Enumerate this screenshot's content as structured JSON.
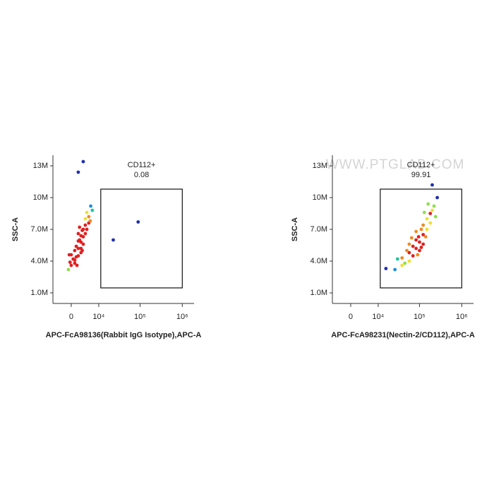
{
  "watermark": "WWW.PTGLAB.COM",
  "chart_data": [
    {
      "type": "scatter",
      "x_label": "APC-FcA98136(Rabbit IgG Isotype),APC-A",
      "y_label": "SSC-A",
      "xscale": "biexponential",
      "xlim": [
        -5500,
        1900000
      ],
      "ylim": [
        0,
        14000000
      ],
      "xticks": [
        0,
        {
          "value": 10000,
          "label": "10⁴"
        },
        {
          "value": 100000,
          "label": "10⁵"
        },
        {
          "value": 1000000,
          "label": "10⁶"
        }
      ],
      "yticks": [
        {
          "value": 1000000,
          "label": "1.0M"
        },
        {
          "value": 4000000,
          "label": "4.0M"
        },
        {
          "value": 7000000,
          "label": "7.0M"
        },
        {
          "value": 10000000,
          "label": "10M"
        },
        {
          "value": 13000000,
          "label": "13M"
        }
      ],
      "gate": {
        "name": "CD112+",
        "percent": 0.08,
        "x": [
          11300,
          1000000
        ],
        "y": [
          1470000,
          10800000
        ]
      },
      "x": [
        -727,
        0,
        907,
        0,
        907,
        1850,
        1850,
        2620,
        2620,
        1850,
        3300,
        3300,
        2620,
        3980,
        3980,
        5220,
        5220,
        6670,
        907,
        3300,
        2620,
        1850,
        3980,
        4500,
        1300,
        1300,
        2200,
        3000,
        500,
        6000,
        -300,
        4500,
        2200,
        3000,
        1500,
        5800,
        -500,
        3300,
        1850,
        23000,
        90000
      ],
      "y": [
        3200000,
        3600000,
        4100000,
        4600000,
        3800000,
        5200000,
        4500000,
        5800000,
        6400000,
        5900000,
        6300000,
        7000000,
        5200000,
        7400000,
        6600000,
        8200000,
        7600000,
        8800000,
        5000000,
        5600000,
        4800000,
        6600000,
        8000000,
        7000000,
        4400000,
        5400000,
        6000000,
        6900000,
        4200000,
        9200000,
        3900000,
        8600000,
        7200000,
        5000000,
        3600000,
        7800000,
        4600000,
        13400000,
        12400000,
        6000000,
        7700000
      ]
    },
    {
      "type": "scatter",
      "x_label": "APC-FcA98231(Nectin-2/CD112),APC-A",
      "y_label": "SSC-A",
      "xscale": "biexponential",
      "xlim": [
        -5500,
        1900000
      ],
      "ylim": [
        0,
        14000000
      ],
      "xticks": [
        0,
        {
          "value": 10000,
          "label": "10⁴"
        },
        {
          "value": 100000,
          "label": "10⁵"
        },
        {
          "value": 1000000,
          "label": "10⁶"
        }
      ],
      "yticks": [
        {
          "value": 1000000,
          "label": "1.0M"
        },
        {
          "value": 4000000,
          "label": "4.0M"
        },
        {
          "value": 7000000,
          "label": "7.0M"
        },
        {
          "value": 10000000,
          "label": "10M"
        },
        {
          "value": 13000000,
          "label": "13M"
        }
      ],
      "gate": {
        "name": "CD112+",
        "percent": 99.91,
        "x": [
          11300,
          1000000
        ],
        "y": [
          1470000,
          10800000
        ]
      },
      "x": [
        26000,
        38500,
        38500,
        57000,
        57000,
        57000,
        83000,
        83000,
        83000,
        100000,
        100000,
        122000,
        122000,
        122000,
        150000,
        150000,
        180000,
        180000,
        220000,
        263000,
        70000,
        70000,
        95000,
        110000,
        45000,
        140000,
        200000,
        65000,
        30000,
        160000,
        90000,
        130000,
        240000,
        50000,
        110000,
        15700,
        200000
      ],
      "y": [
        3200000,
        3600000,
        4300000,
        4000000,
        4800000,
        5600000,
        5200000,
        6000000,
        6800000,
        5800000,
        5000000,
        6500000,
        7400000,
        5600000,
        7000000,
        8000000,
        8500000,
        7600000,
        9200000,
        10000000,
        4500000,
        5400000,
        6300000,
        7000000,
        3800000,
        6300000,
        8800000,
        6200000,
        4200000,
        9400000,
        4600000,
        8600000,
        8200000,
        5000000,
        5300000,
        3300000,
        11200000
      ]
    }
  ]
}
